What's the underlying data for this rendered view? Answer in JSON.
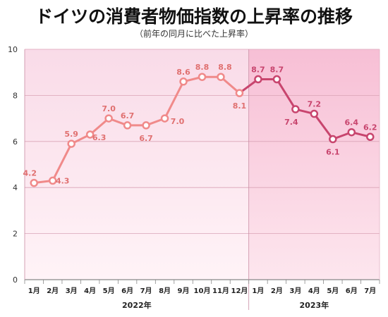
{
  "title": "ドイツの消費者物価指数の上昇率の推移",
  "subtitle": "（前年の同月に比べた上昇率）",
  "colors": {
    "line_2022": "#f08a8a",
    "line_2023": "#c8456e",
    "label_2022": "#e07070",
    "label_2023": "#c8456e",
    "bg_2022": "#fbe4ee",
    "bg_2023": "#f9c6da"
  },
  "chart_data": {
    "type": "line",
    "title": "ドイツの消費者物価指数の上昇率の推移",
    "subtitle": "（前年の同月に比べた上昇率）",
    "xlabel": "",
    "ylabel": "",
    "ylim": [
      0,
      10
    ],
    "yticks": [
      "0",
      "2",
      "4",
      "6",
      "8",
      "10"
    ],
    "grid": true,
    "years": [
      {
        "label": "2022年",
        "start": 0,
        "end": 11
      },
      {
        "label": "2023年",
        "start": 12,
        "end": 18
      }
    ],
    "categories": [
      "1月",
      "2月",
      "3月",
      "4月",
      "5月",
      "6月",
      "7月",
      "8月",
      "9月",
      "10月",
      "11月",
      "12月",
      "1月",
      "2月",
      "3月",
      "4月",
      "5月",
      "6月",
      "7月"
    ],
    "values": [
      4.2,
      4.3,
      5.9,
      6.3,
      7.0,
      6.7,
      6.7,
      7.0,
      8.6,
      8.8,
      8.8,
      8.1,
      8.7,
      8.7,
      7.4,
      7.2,
      6.1,
      6.4,
      6.2
    ],
    "value_labels": [
      "4.2",
      "4.3",
      "5.9",
      "6.3",
      "7.0",
      "6.7",
      "6.7",
      "7.0",
      "8.6",
      "8.8",
      "8.8",
      "8.1",
      "8.7",
      "8.7",
      "7.4",
      "7.2",
      "6.1",
      "6.4",
      "6.2"
    ]
  }
}
